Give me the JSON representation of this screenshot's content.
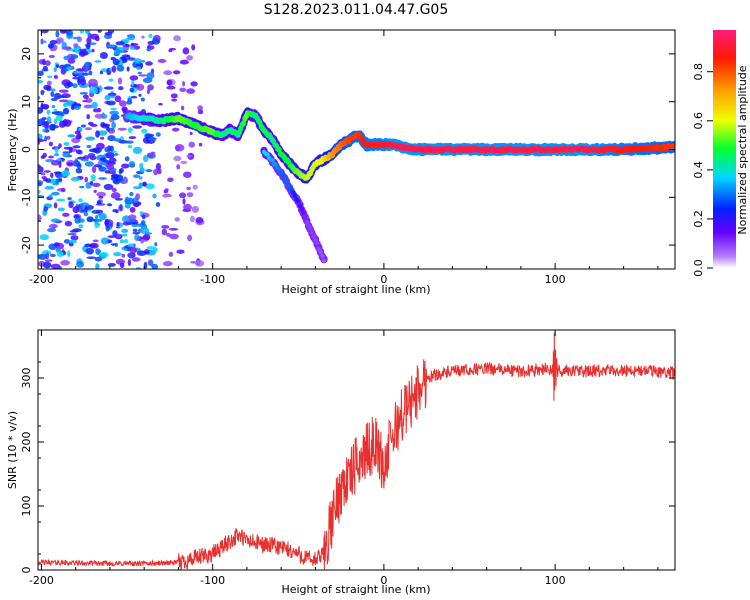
{
  "figure_title": "S128.2023.011.04.47.G05",
  "chart_data": [
    {
      "type": "heatmap",
      "panel": "spectrogram",
      "xlabel": "Height of straight line (km)",
      "ylabel": "Frequency (Hz)",
      "xlim": [
        -202,
        170
      ],
      "ylim": [
        -25,
        25
      ],
      "xticks": [
        -200,
        -100,
        0,
        100
      ],
      "xtick_labels": [
        "-200",
        "-100",
        "0",
        "100"
      ],
      "yticks": [
        -20,
        -10,
        0,
        10,
        20
      ],
      "ytick_labels": [
        "-20",
        "-10",
        "0",
        "10",
        "20"
      ],
      "colorbar": {
        "label": "Normalized spectral amplitude",
        "range": [
          0,
          0.97
        ],
        "ticks": [
          0,
          0.2,
          0.4,
          0.6,
          0.8
        ],
        "tick_labels": [
          "0.0",
          "0.2",
          "0.4",
          "0.6",
          "0.8"
        ]
      },
      "ridge": {
        "x": [
          -150,
          -140,
          -130,
          -120,
          -110,
          -100,
          -95,
          -90,
          -85,
          -80,
          -75,
          -70,
          -65,
          -60,
          -55,
          -50,
          -45,
          -40,
          -35,
          -30,
          -25,
          -20,
          -15,
          -10,
          -5,
          0,
          5,
          10,
          20,
          40,
          60,
          80,
          100,
          120,
          140,
          170
        ],
        "y": [
          7,
          6.5,
          6,
          6.5,
          5,
          3.5,
          3,
          4,
          3,
          7.5,
          7,
          4,
          2,
          -1,
          -3,
          -5,
          -6,
          -3,
          -2,
          -1,
          1,
          2,
          3,
          1,
          1,
          1,
          1,
          0.5,
          0,
          0,
          0,
          0,
          0,
          0,
          0,
          0.5
        ],
        "amplitude": [
          0.35,
          0.4,
          0.45,
          0.55,
          0.5,
          0.55,
          0.45,
          0.45,
          0.45,
          0.55,
          0.45,
          0.5,
          0.45,
          0.5,
          0.5,
          0.55,
          0.6,
          0.6,
          0.65,
          0.75,
          0.8,
          0.85,
          0.85,
          0.9,
          0.9,
          0.92,
          0.95,
          0.95,
          0.95,
          0.95,
          0.95,
          0.95,
          0.95,
          0.95,
          0.9,
          0.85
        ]
      },
      "secondary_ridge": {
        "x": [
          -70,
          -65,
          -60,
          -55,
          -50,
          -45,
          -40,
          -35
        ],
        "y": [
          -0.5,
          -2.5,
          -5,
          -8,
          -11,
          -15,
          -19,
          -23
        ],
        "amplitude": [
          0.4,
          0.35,
          0.3,
          0.3,
          0.2,
          0.1,
          0.1,
          0.08
        ]
      }
    },
    {
      "type": "line",
      "panel": "snr",
      "xlabel": "Height of straight line (km)",
      "ylabel": "SNR (10 * v/v)",
      "xlim": [
        -202,
        170
      ],
      "ylim": [
        0,
        375
      ],
      "xticks": [
        -200,
        -100,
        0,
        100
      ],
      "xtick_labels": [
        "-200",
        "-100",
        "0",
        "100"
      ],
      "yticks": [
        0,
        100,
        200,
        300
      ],
      "ytick_labels": [
        "0",
        "100",
        "200",
        "300"
      ],
      "series": [
        {
          "color": "#e8312f",
          "x": [
            -202,
            -180,
            -160,
            -140,
            -120,
            -110,
            -100,
            -90,
            -85,
            -80,
            -70,
            -60,
            -55,
            -50,
            -45,
            -40,
            -35,
            -30,
            -25,
            -20,
            -15,
            -10,
            -5,
            0,
            5,
            10,
            15,
            20,
            25,
            30,
            40,
            60,
            80,
            95,
            100,
            105,
            120,
            140,
            160,
            170
          ],
          "y": [
            12,
            11,
            10,
            10,
            12,
            18,
            25,
            45,
            55,
            45,
            40,
            35,
            30,
            25,
            18,
            15,
            25,
            80,
            130,
            145,
            170,
            185,
            200,
            160,
            210,
            240,
            260,
            280,
            300,
            305,
            310,
            315,
            310,
            315,
            310,
            312,
            310,
            312,
            310,
            308
          ]
        }
      ]
    }
  ],
  "colors": {
    "line": "#e8312f",
    "frame": "#000000",
    "background": "#ffffff"
  }
}
